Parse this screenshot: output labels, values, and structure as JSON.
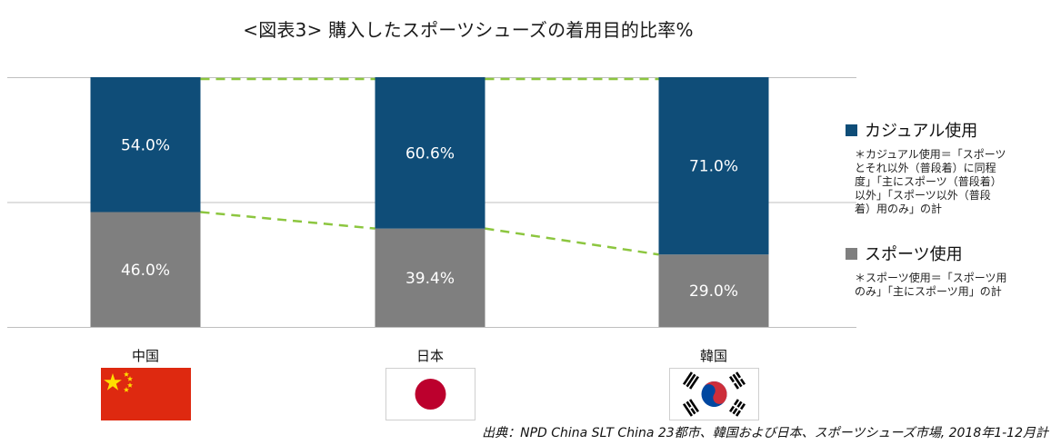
{
  "title": "<図表3> 購入したスポーツシューズの着用目的比率%",
  "colors": {
    "casual": "#0F4D78",
    "sports": "#7F7F7F",
    "dashed_connector": "#8CC63F",
    "gridline": "#BFBFBF"
  },
  "chart_data": {
    "type": "bar",
    "stacked": true,
    "categories": [
      "中国",
      "日本",
      "韓国"
    ],
    "series": [
      {
        "name": "スポーツ使用",
        "values": [
          46.0,
          39.4,
          29.0
        ]
      },
      {
        "name": "カジュアル使用",
        "values": [
          54.0,
          60.6,
          71.0
        ]
      }
    ],
    "data_labels": {
      "casual": [
        "54.0%",
        "60.6%",
        "71.0%"
      ],
      "sports": [
        "46.0%",
        "39.4%",
        "29.0%"
      ]
    },
    "ylim": [
      0,
      100
    ],
    "grid": true,
    "connector_lines": "dashed between series boundaries",
    "legend_position": "right"
  },
  "legend": {
    "casual": {
      "label": "カジュアル使用",
      "note": "＊カジュアル使用＝「スポーツ\nとそれ以外（普段着）に同程\n度」「主にスポーツ（普段着）\n以外」「スポーツ以外（普段\n着）用のみ」の計"
    },
    "sports": {
      "label": "スポーツ使用",
      "note": "＊スポーツ使用＝「スポーツ用\nのみ」「主にスポーツ用」の計"
    }
  },
  "countries": [
    {
      "label": "中国",
      "flag_icon": "china-flag-icon"
    },
    {
      "label": "日本",
      "flag_icon": "japan-flag-icon"
    },
    {
      "label": "韓国",
      "flag_icon": "korea-flag-icon"
    }
  ],
  "source": "出典：NPD China SLT China 23都市、韓国および日本、スポーツシューズ市場, 2018年1-12月計"
}
